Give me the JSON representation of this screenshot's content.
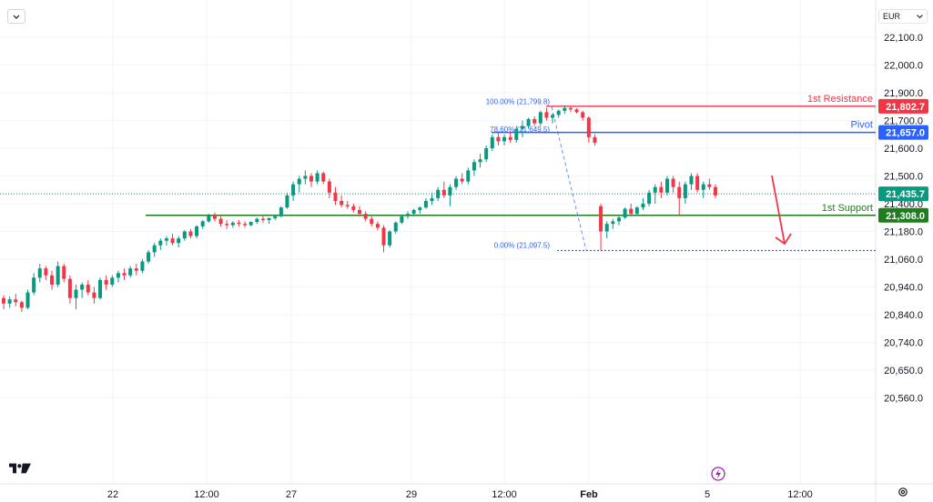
{
  "currency_selector": "EUR",
  "icons": {
    "collapse": "chevron-down-icon",
    "logo": "tradingview-logo-icon",
    "replay": "lightning-icon",
    "settings": "gear-icon"
  },
  "chart_data": {
    "type": "candlestick",
    "instrument_currency": "EUR",
    "y_axis": {
      "ylim": [
        20520,
        22160
      ],
      "ticks": [
        "22,100.0",
        "22,000.0",
        "21,900.0",
        "21,700.0",
        "21,600.0",
        "21,500.0",
        "21,400.0",
        "21,180.0",
        "21,060.0",
        "20,940.0",
        "20,840.0",
        "20,740.0",
        "20,650.0",
        "20,560.0"
      ]
    },
    "x_axis": {
      "ticks": [
        "22",
        "12:00",
        "27",
        "29",
        "12:00",
        "Feb",
        "5",
        "12:00"
      ]
    },
    "last_price": {
      "label": "21,435.7",
      "value": 21435.7,
      "color": "#089981"
    },
    "levels": [
      {
        "name": "1st Resistance",
        "value": 21802.7,
        "label": "21,802.7",
        "color": "#f23645"
      },
      {
        "name": "Pivot",
        "value": 21657.0,
        "label": "21,657.0",
        "color": "#2962ff"
      },
      {
        "name": "1st Support",
        "value": 21308.0,
        "label": "21,308.0",
        "color": "#1e7e1e"
      }
    ],
    "fibonacci": [
      {
        "label": "100.00% (21,799.8)",
        "value": 21799.8
      },
      {
        "label": "78.60% (21,649.5)",
        "value": 21649.5
      },
      {
        "label": "0.00% (21,097.5)",
        "value": 21097.5
      }
    ],
    "projection_arrow": {
      "direction": "down",
      "color": "#f23645"
    },
    "colors": {
      "up": "#089981",
      "down": "#f23645",
      "grid": "#f0f3fa"
    },
    "candles": [
      [
        20900,
        20910,
        20860,
        20880
      ],
      [
        20880,
        20905,
        20865,
        20895
      ],
      [
        20895,
        20915,
        20870,
        20885
      ],
      [
        20885,
        20890,
        20850,
        20865
      ],
      [
        20865,
        20930,
        20860,
        20920
      ],
      [
        20920,
        21000,
        20910,
        20980
      ],
      [
        20980,
        21040,
        20960,
        21020
      ],
      [
        21020,
        21030,
        20970,
        20990
      ],
      [
        20990,
        21010,
        20930,
        20950
      ],
      [
        20950,
        21050,
        20940,
        21030
      ],
      [
        21030,
        21040,
        20960,
        20975
      ],
      [
        20975,
        20990,
        20880,
        20900
      ],
      [
        20900,
        20950,
        20860,
        20930
      ],
      [
        20930,
        20960,
        20900,
        20950
      ],
      [
        20950,
        20970,
        20910,
        20920
      ],
      [
        20920,
        20940,
        20880,
        20900
      ],
      [
        20900,
        20980,
        20895,
        20970
      ],
      [
        20970,
        20990,
        20930,
        20950
      ],
      [
        20950,
        20990,
        20940,
        20980
      ],
      [
        20980,
        21010,
        20960,
        21000
      ],
      [
        21000,
        21020,
        20970,
        20990
      ],
      [
        20990,
        21030,
        20980,
        21020
      ],
      [
        21020,
        21040,
        20990,
        21010
      ],
      [
        21010,
        21060,
        21000,
        21050
      ],
      [
        21050,
        21100,
        21040,
        21090
      ],
      [
        21090,
        21130,
        21070,
        21120
      ],
      [
        21120,
        21150,
        21100,
        21140
      ],
      [
        21140,
        21160,
        21120,
        21150
      ],
      [
        21150,
        21170,
        21120,
        21130
      ],
      [
        21130,
        21160,
        21110,
        21150
      ],
      [
        21150,
        21190,
        21140,
        21180
      ],
      [
        21180,
        21200,
        21150,
        21160
      ],
      [
        21160,
        21230,
        21150,
        21220
      ],
      [
        21220,
        21270,
        21200,
        21260
      ],
      [
        21260,
        21320,
        21250,
        21310
      ],
      [
        21310,
        21330,
        21260,
        21280
      ],
      [
        21280,
        21300,
        21220,
        21240
      ],
      [
        21240,
        21270,
        21200,
        21230
      ],
      [
        21230,
        21260,
        21210,
        21250
      ],
      [
        21250,
        21270,
        21220,
        21240
      ],
      [
        21240,
        21260,
        21210,
        21230
      ],
      [
        21230,
        21260,
        21220,
        21255
      ],
      [
        21255,
        21290,
        21240,
        21280
      ],
      [
        21280,
        21300,
        21250,
        21270
      ],
      [
        21270,
        21290,
        21240,
        21285
      ],
      [
        21285,
        21310,
        21270,
        21300
      ],
      [
        21300,
        21380,
        21290,
        21370
      ],
      [
        21370,
        21440,
        21360,
        21430
      ],
      [
        21430,
        21480,
        21410,
        21470
      ],
      [
        21470,
        21500,
        21440,
        21490
      ],
      [
        21490,
        21520,
        21470,
        21500
      ],
      [
        21500,
        21510,
        21460,
        21480
      ],
      [
        21480,
        21520,
        21470,
        21510
      ],
      [
        21510,
        21515,
        21470,
        21480
      ],
      [
        21480,
        21490,
        21420,
        21440
      ],
      [
        21440,
        21460,
        21390,
        21410
      ],
      [
        21410,
        21430,
        21370,
        21390
      ],
      [
        21390,
        21410,
        21360,
        21380
      ],
      [
        21380,
        21400,
        21330,
        21350
      ],
      [
        21350,
        21380,
        21300,
        21320
      ],
      [
        21320,
        21340,
        21260,
        21280
      ],
      [
        21280,
        21300,
        21220,
        21240
      ],
      [
        21240,
        21260,
        21190,
        21210
      ],
      [
        21210,
        21230,
        21090,
        21120
      ],
      [
        21120,
        21190,
        21110,
        21180
      ],
      [
        21180,
        21260,
        21170,
        21250
      ],
      [
        21250,
        21310,
        21240,
        21300
      ],
      [
        21300,
        21340,
        21280,
        21320
      ],
      [
        21320,
        21360,
        21300,
        21350
      ],
      [
        21350,
        21380,
        21320,
        21370
      ],
      [
        21370,
        21420,
        21360,
        21410
      ],
      [
        21410,
        21440,
        21390,
        21420
      ],
      [
        21420,
        21460,
        21410,
        21450
      ],
      [
        21450,
        21480,
        21420,
        21430
      ],
      [
        21430,
        21470,
        21380,
        21460
      ],
      [
        21460,
        21500,
        21450,
        21490
      ],
      [
        21490,
        21510,
        21470,
        21480
      ],
      [
        21480,
        21530,
        21470,
        21520
      ],
      [
        21520,
        21560,
        21500,
        21550
      ],
      [
        21550,
        21580,
        21530,
        21560
      ],
      [
        21560,
        21610,
        21550,
        21600
      ],
      [
        21600,
        21650,
        21590,
        21640
      ],
      [
        21640,
        21660,
        21610,
        21625
      ],
      [
        21625,
        21650,
        21610,
        21640
      ],
      [
        21640,
        21660,
        21620,
        21630
      ],
      [
        21630,
        21680,
        21620,
        21670
      ],
      [
        21670,
        21700,
        21640,
        21680
      ],
      [
        21680,
        21720,
        21670,
        21710
      ],
      [
        21710,
        21730,
        21680,
        21690
      ],
      [
        21690,
        21770,
        21680,
        21760
      ],
      [
        21760,
        21790,
        21700,
        21720
      ],
      [
        21720,
        21750,
        21690,
        21740
      ],
      [
        21740,
        21780,
        21720,
        21770
      ],
      [
        21770,
        21810,
        21750,
        21790
      ],
      [
        21790,
        21800,
        21760,
        21780
      ],
      [
        21780,
        21790,
        21750,
        21760
      ],
      [
        21760,
        21770,
        21700,
        21720
      ],
      [
        21720,
        21730,
        21620,
        21640
      ],
      [
        21640,
        21650,
        21610,
        21620
      ],
      [
        21380,
        21400,
        21097,
        21180
      ],
      [
        21180,
        21260,
        21150,
        21240
      ],
      [
        21240,
        21280,
        21200,
        21260
      ],
      [
        21260,
        21300,
        21230,
        21290
      ],
      [
        21290,
        21370,
        21280,
        21360
      ],
      [
        21360,
        21400,
        21300,
        21320
      ],
      [
        21320,
        21380,
        21310,
        21370
      ],
      [
        21370,
        21420,
        21350,
        21400
      ],
      [
        21400,
        21450,
        21380,
        21440
      ],
      [
        21440,
        21470,
        21400,
        21460
      ],
      [
        21460,
        21480,
        21420,
        21440
      ],
      [
        21440,
        21500,
        21430,
        21490
      ],
      [
        21490,
        21500,
        21440,
        21460
      ],
      [
        21460,
        21480,
        21310,
        21420
      ],
      [
        21420,
        21480,
        21400,
        21470
      ],
      [
        21470,
        21510,
        21450,
        21500
      ],
      [
        21500,
        21510,
        21440,
        21450
      ],
      [
        21450,
        21480,
        21420,
        21470
      ],
      [
        21470,
        21490,
        21450,
        21460
      ],
      [
        21460,
        21470,
        21420,
        21430
      ]
    ]
  }
}
